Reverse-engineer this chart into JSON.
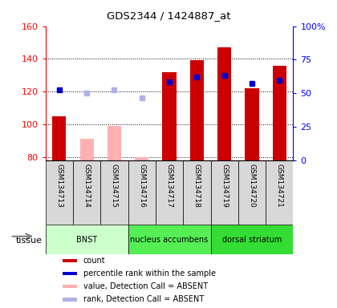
{
  "title": "GDS2344 / 1424887_at",
  "samples": [
    "GSM134713",
    "GSM134714",
    "GSM134715",
    "GSM134716",
    "GSM134717",
    "GSM134718",
    "GSM134719",
    "GSM134720",
    "GSM134721"
  ],
  "bar_values": [
    105,
    null,
    null,
    null,
    132,
    139,
    147,
    122,
    136
  ],
  "bar_absent_values": [
    null,
    91,
    99,
    80,
    null,
    null,
    null,
    null,
    null
  ],
  "rank_present": [
    121,
    null,
    null,
    null,
    126,
    129,
    130,
    125,
    127
  ],
  "rank_absent": [
    null,
    119,
    121,
    116,
    null,
    null,
    null,
    null,
    null
  ],
  "bar_color_present": "#cc0000",
  "bar_color_absent": "#ffb0b0",
  "rank_color_present": "#0000cc",
  "rank_color_absent": "#b0b0e8",
  "ylim_left": [
    78,
    160
  ],
  "ylim_right": [
    0,
    100
  ],
  "yticks_left": [
    80,
    100,
    120,
    140,
    160
  ],
  "ytick_labels_right": [
    "0",
    "25",
    "50",
    "75",
    "100%"
  ],
  "grid_lines": [
    80,
    100,
    120,
    140
  ],
  "tissue_groups": [
    {
      "label": "BNST",
      "start": 0,
      "end": 3,
      "color": "#ccffcc"
    },
    {
      "label": "nucleus accumbens",
      "start": 3,
      "end": 6,
      "color": "#55ee55"
    },
    {
      "label": "dorsal striatum",
      "start": 6,
      "end": 9,
      "color": "#33dd33"
    }
  ],
  "legend_items": [
    {
      "label": "count",
      "color": "#cc0000"
    },
    {
      "label": "percentile rank within the sample",
      "color": "#0000cc"
    },
    {
      "label": "value, Detection Call = ABSENT",
      "color": "#ffb0b0"
    },
    {
      "label": "rank, Detection Call = ABSENT",
      "color": "#b0b0e8"
    }
  ],
  "tissue_label": "tissue",
  "sample_box_color": "#d8d8d8",
  "bar_width": 0.5
}
